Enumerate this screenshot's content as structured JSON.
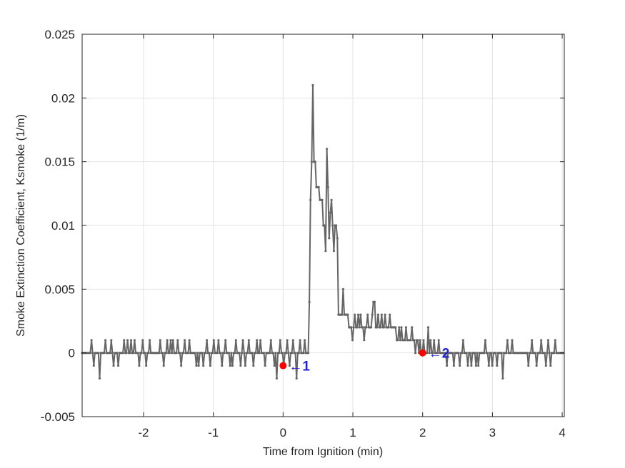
{
  "chart_data": {
    "type": "line",
    "title": "",
    "xlabel": "Time from Ignition (min)",
    "ylabel": "Smoke Extinction Coefficient, Ksmoke (1/m)",
    "xlim": [
      -2.88,
      4.03
    ],
    "ylim": [
      -0.005,
      0.025
    ],
    "xticks": [
      -2,
      -1,
      0,
      1,
      2,
      3,
      4
    ],
    "xtick_labels": [
      "-2",
      "-1",
      "0",
      "1",
      "2",
      "3",
      "4"
    ],
    "yticks": [
      -0.005,
      0,
      0.005,
      0.01,
      0.015,
      0.02,
      0.025
    ],
    "ytick_labels": [
      "-0.005",
      "0",
      "0.005",
      "0.01",
      "0.015",
      "0.02",
      "0.025"
    ],
    "grid": true,
    "series": [
      {
        "color": "#666666",
        "marker": "dot",
        "x_start": -2.88,
        "x_step": 0.0167,
        "values": [
          0,
          0,
          0,
          0,
          0,
          0,
          0,
          0,
          0.001,
          0,
          -0.001,
          0,
          0,
          0,
          0,
          -0.002,
          0,
          0,
          0,
          0,
          0.001,
          0,
          0,
          0,
          0,
          0.001,
          0,
          -0.001,
          0,
          0,
          0,
          -0.001,
          0,
          0,
          0,
          0,
          0.001,
          0,
          0,
          0.001,
          0,
          0,
          0.001,
          0,
          0,
          0.001,
          0,
          0,
          0,
          -0.001,
          0,
          0,
          0.001,
          0,
          0,
          -0.001,
          0,
          0,
          0.001,
          0,
          0,
          0,
          0,
          0,
          0,
          0,
          0,
          0.001,
          0,
          0,
          -0.001,
          0,
          0,
          0.001,
          0,
          0,
          0.001,
          0,
          0.001,
          0,
          0,
          0,
          0.001,
          0,
          0,
          -0.001,
          0,
          0,
          0.001,
          0,
          0,
          0,
          0.001,
          0,
          0,
          0,
          0,
          0,
          -0.001,
          0,
          -0.001,
          0,
          0,
          0,
          -0.001,
          0,
          0,
          0.001,
          0,
          0,
          -0.001,
          0,
          0,
          0.001,
          0,
          0,
          0,
          0.001,
          0,
          0,
          -0.001,
          0,
          0,
          0.001,
          0,
          0,
          0,
          -0.001,
          0,
          -0.001,
          0,
          0,
          0.001,
          0,
          0,
          0,
          -0.001,
          0,
          0.001,
          0,
          -0.001,
          0,
          0,
          0.001,
          0,
          0,
          0,
          -0.001,
          0,
          0,
          0.001,
          0,
          0,
          0.001,
          0,
          0,
          0,
          -0.001,
          0,
          0,
          0,
          0,
          0.001,
          0,
          0,
          -0.001,
          0,
          -0.002,
          0,
          0,
          0.001,
          0,
          0,
          -0.001,
          0,
          0,
          0.001,
          0,
          -0.001,
          0,
          0,
          0.001,
          0,
          0,
          -0.002,
          0,
          0,
          0.001,
          0,
          0,
          0,
          0.001,
          0,
          0,
          0,
          0.004,
          0.012,
          0.015,
          0.021,
          0.015,
          0.015,
          0.013,
          0.013,
          0.013,
          0.012,
          0.012,
          0.012,
          0.01,
          0.01,
          0.008,
          0.016,
          0.013,
          0.009,
          0.011,
          0.012,
          0.01,
          0.008,
          0.01,
          0.01,
          0.009,
          0.003,
          0.003,
          0.003,
          0.003,
          0.005,
          0.003,
          0.003,
          0.003,
          0.003,
          0.002,
          0.002,
          0.002,
          0.001,
          0.002,
          0.003,
          0.002,
          0.002,
          0.003,
          0.002,
          0.003,
          0.002,
          0.002,
          0.001,
          0.002,
          0.002,
          0.003,
          0.002,
          0.002,
          0.002,
          0.003,
          0.004,
          0.004,
          0.002,
          0.002,
          0.003,
          0.002,
          0.002,
          0.003,
          0.002,
          0.002,
          0.003,
          0.002,
          0.002,
          0.002,
          0.003,
          0.002,
          0.002,
          0.002,
          0.002,
          0.002,
          0.001,
          0.001,
          0.002,
          0.001,
          0.002,
          0.001,
          0.001,
          0.001,
          0.002,
          0.001,
          0.001,
          0.001,
          0.001,
          0.002,
          0.001,
          0.001,
          0,
          0.001,
          0.001,
          0,
          0.001,
          0,
          0,
          0.001,
          0,
          0,
          0,
          0.002,
          0,
          0.001,
          0,
          0,
          0.001,
          0,
          0,
          0,
          0.001,
          0,
          0,
          0,
          0,
          0,
          0,
          -0.001,
          0,
          0,
          0,
          0,
          0,
          -0.001,
          0,
          0,
          0,
          0,
          -0.001,
          0,
          0,
          0.001,
          0,
          0,
          0,
          -0.001,
          0,
          0,
          -0.001,
          0,
          0,
          0,
          -0.001,
          0,
          -0.001,
          0,
          0,
          0,
          0,
          0,
          0.001,
          0,
          0,
          -0.001,
          0,
          0,
          -0.001,
          0,
          0,
          0,
          -0.001,
          0,
          0,
          0,
          0,
          -0.002,
          0,
          0,
          0,
          0.001,
          0,
          0,
          0,
          0.001,
          0,
          0,
          0,
          0,
          0,
          0,
          0,
          0,
          0,
          0,
          0,
          0,
          0,
          -0.001,
          0,
          0,
          0.001,
          0,
          0,
          0,
          -0.001,
          0,
          0,
          0,
          0.001,
          0,
          0,
          0,
          -0.001,
          0,
          0.001,
          0,
          -0.001,
          0,
          0,
          0,
          0.001,
          0,
          0,
          0,
          0,
          0,
          0,
          0,
          0,
          0.001,
          0,
          -0.001,
          0,
          0,
          -0.001,
          0,
          0,
          0,
          0,
          0.001,
          0,
          0,
          0,
          0,
          0,
          0
        ]
      }
    ],
    "markers": [
      {
        "x": 0,
        "y": -0.001,
        "label": "1",
        "color": "#ff0000"
      },
      {
        "x": 2,
        "y": 0,
        "label": "2",
        "color": "#ff0000"
      }
    ],
    "annotation_color": "#1f22d6",
    "annotation_arrow": "←"
  }
}
